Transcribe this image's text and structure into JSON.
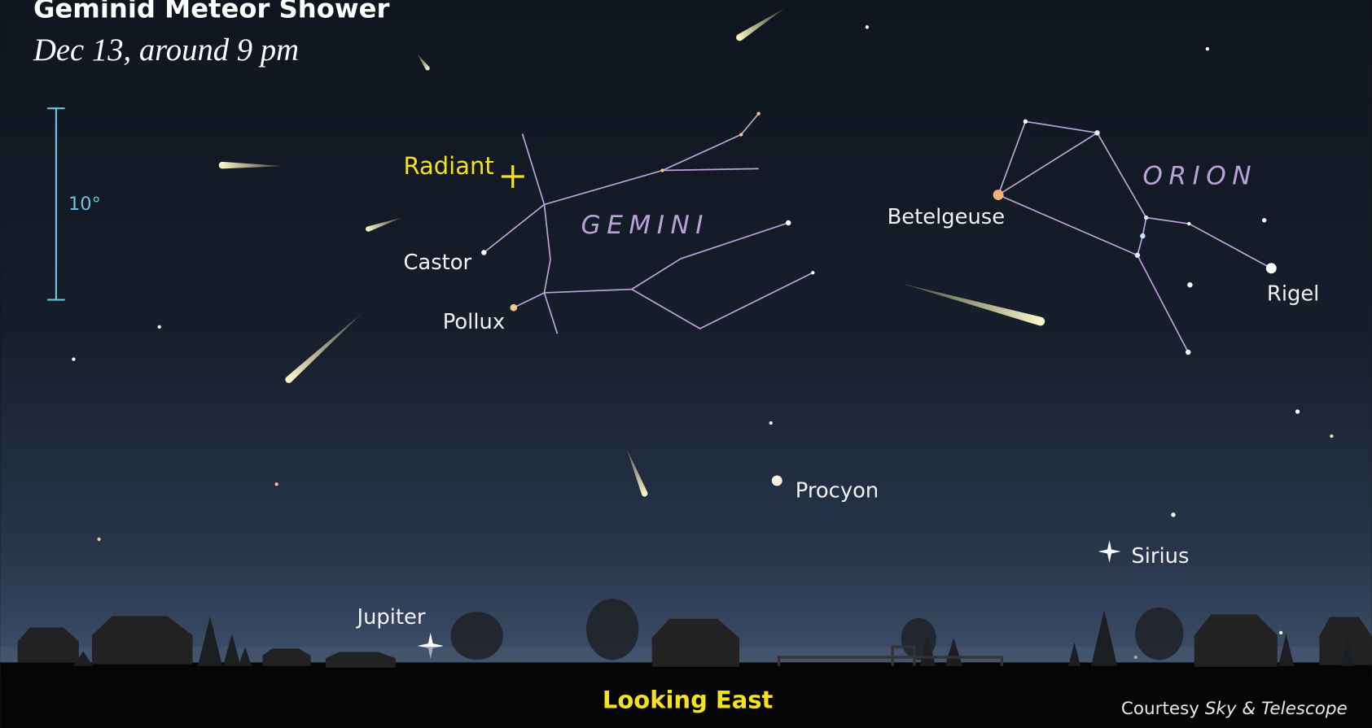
{
  "header": {
    "title": "Geminid Meteor Shower",
    "subtitle": "Dec 13, around 9 pm"
  },
  "scale": {
    "label": "10°"
  },
  "radiant": {
    "label": "Radiant"
  },
  "constellations": [
    {
      "name": "GEMINI"
    },
    {
      "name": "ORION"
    }
  ],
  "stars": [
    {
      "label": "Castor"
    },
    {
      "label": "Pollux"
    },
    {
      "label": "Betelgeuse"
    },
    {
      "label": "Rigel"
    },
    {
      "label": "Procyon"
    },
    {
      "label": "Sirius"
    }
  ],
  "planet": {
    "label": "Jupiter"
  },
  "direction": "Looking East",
  "credit": {
    "prefix": "Courtesy",
    "source": "Sky & Telescope"
  }
}
